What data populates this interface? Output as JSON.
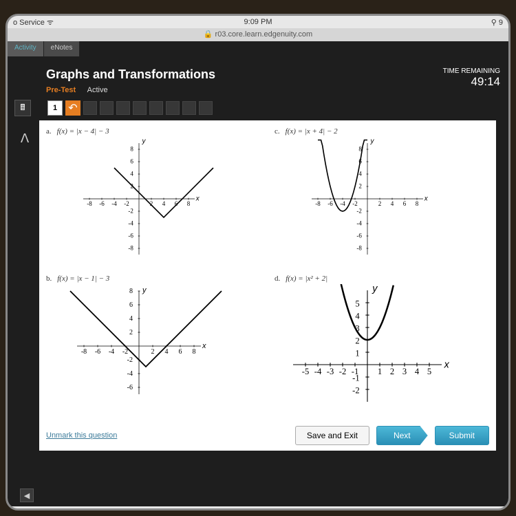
{
  "status": {
    "carrier": "o Service",
    "time": "9:09 PM",
    "battery": "9",
    "url": "r03.core.learn.edgenuity.com"
  },
  "tabs": {
    "activity": "Activity",
    "enotes": "eNotes"
  },
  "header": {
    "title": "Graphs and Transformations",
    "pretest": "Pre-Test",
    "active": "Active",
    "time_remaining_label": "TIME REMAINING",
    "timer": "49:14"
  },
  "toolbar": {
    "question_number": "1"
  },
  "answers": {
    "a": {
      "label": "a.",
      "formula": "f(x) = |x − 4| − 3"
    },
    "b": {
      "label": "b.",
      "formula": "f(x) = |x − 1| − 3"
    },
    "c": {
      "label": "c.",
      "formula": "f(x) = |x + 4| − 2"
    },
    "d": {
      "label": "d.",
      "formula": "f(x) = |x² + 2|"
    }
  },
  "graphs": {
    "a": {
      "xlim": [
        -8,
        8
      ],
      "ylim": [
        -8,
        8
      ],
      "ticks": [
        -8,
        -6,
        -4,
        -2,
        2,
        4,
        6,
        8
      ],
      "type": "absval",
      "vertex": [
        4,
        -3
      ],
      "slope": 1
    },
    "b": {
      "xlim": [
        -8,
        8
      ],
      "ylim": [
        -6,
        8
      ],
      "ticks": [
        -8,
        -6,
        -4,
        -2,
        2,
        4,
        6,
        8
      ],
      "type": "absval",
      "vertex": [
        1,
        -3
      ],
      "slope": 1
    },
    "c": {
      "xlim": [
        -8,
        8
      ],
      "ylim": [
        -8,
        8
      ],
      "ticks": [
        -8,
        -6,
        -4,
        -2,
        2,
        4,
        6,
        8
      ],
      "type": "parabola",
      "vertex": [
        -4,
        -2
      ],
      "a": 1
    },
    "d": {
      "xlim": [
        -5,
        5
      ],
      "ylim": [
        -2,
        5
      ],
      "ticks": [
        -5,
        -4,
        -3,
        -2,
        -1,
        1,
        2,
        3,
        4,
        5
      ],
      "type": "parabola",
      "vertex": [
        0,
        2
      ],
      "a": 1
    }
  },
  "bottom": {
    "unmark": "Unmark this question",
    "save_exit": "Save and Exit",
    "next": "Next",
    "submit": "Submit"
  },
  "style": {
    "axis_color": "#000000",
    "curve_color": "#000000",
    "label_font": "Times New Roman"
  }
}
